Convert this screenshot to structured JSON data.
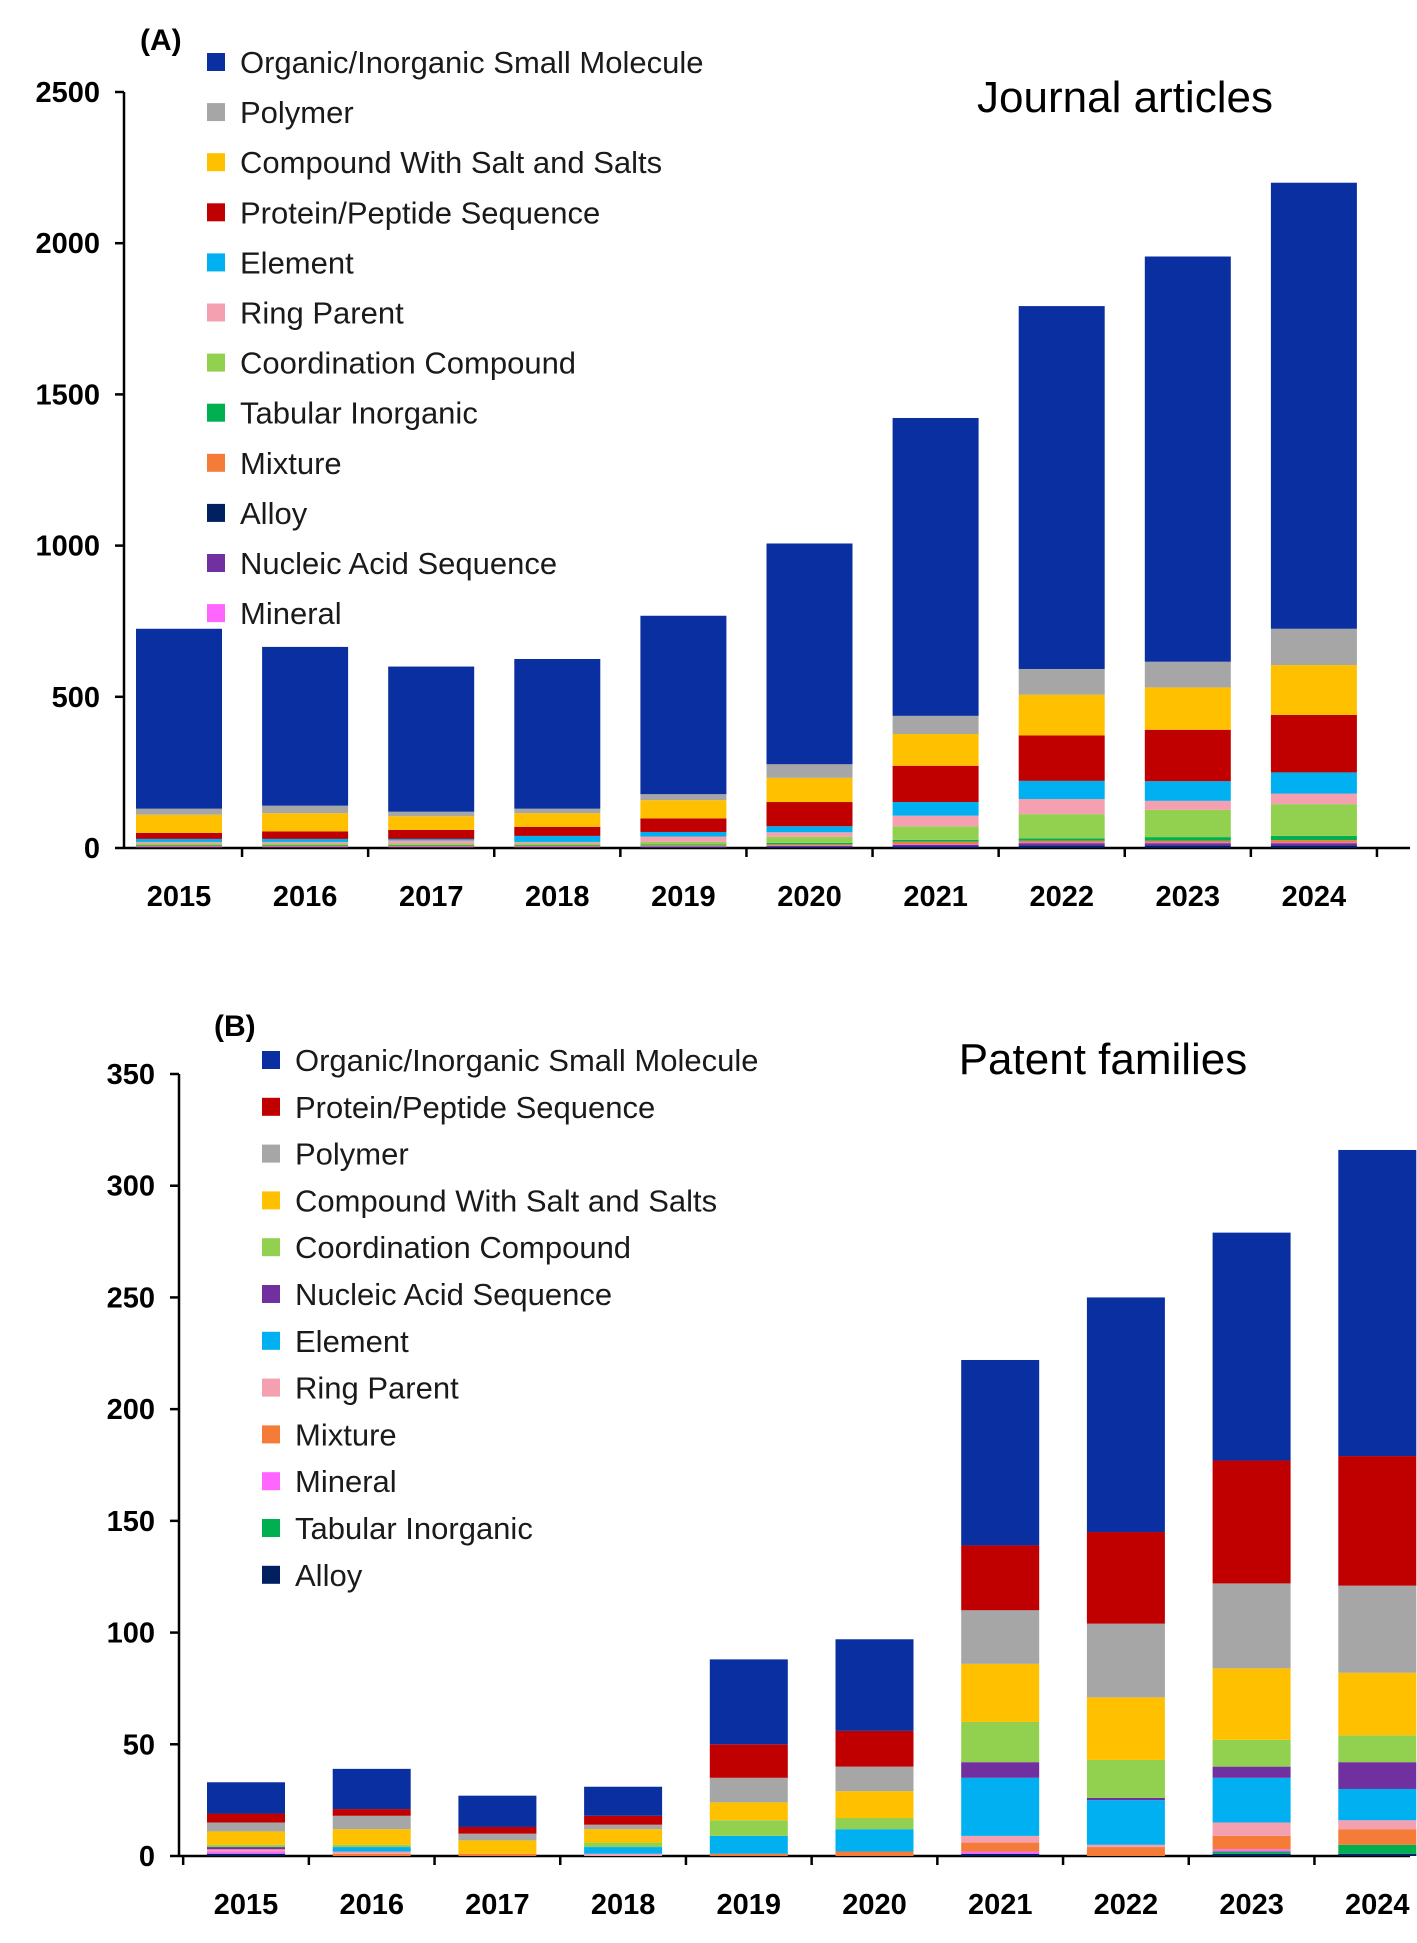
{
  "colors": {
    "Organic/Inorganic Small Molecule": "#0A2FA0",
    "Polymer": "#A6A6A6",
    "Compound With Salt and Salts": "#FFC000",
    "Protein/Peptide Sequence": "#C00000",
    "Element": "#00B0F0",
    "Ring Parent": "#F4A0B0",
    "Coordination Compound": "#92D050",
    "Tabular Inorganic": "#00B050",
    "Mixture": "#F47C38",
    "Alloy": "#002060",
    "Nucleic Acid Sequence": "#7030A0",
    "Mineral": "#FF66FF"
  },
  "chart_data": [
    {
      "panel": "(A)",
      "type": "bar",
      "stacked": true,
      "title": "Journal articles",
      "xlabel": "",
      "ylabel": "",
      "ylim": [
        0,
        2500
      ],
      "yticks": [
        0,
        500,
        1000,
        1500,
        2000,
        2500
      ],
      "categories": [
        "2015",
        "2016",
        "2017",
        "2018",
        "2019",
        "2020",
        "2021",
        "2022",
        "2023",
        "2024"
      ],
      "legend_position": "top-left",
      "legend_order": [
        "Organic/Inorganic Small Molecule",
        "Polymer",
        "Compound With Salt and Salts",
        "Protein/Peptide Sequence",
        "Element",
        "Ring Parent",
        "Coordination Compound",
        "Tabular Inorganic",
        "Mixture",
        "Alloy",
        "Nucleic Acid Sequence",
        "Mineral"
      ],
      "series": [
        {
          "name": "Alloy",
          "values": [
            2,
            2,
            2,
            2,
            2,
            3,
            5,
            8,
            8,
            8
          ]
        },
        {
          "name": "Nucleic Acid Sequence",
          "values": [
            2,
            2,
            2,
            2,
            3,
            4,
            6,
            8,
            8,
            8
          ]
        },
        {
          "name": "Mineral",
          "values": [
            1,
            1,
            1,
            1,
            1,
            1,
            2,
            2,
            2,
            2
          ]
        },
        {
          "name": "Mixture",
          "values": [
            3,
            3,
            3,
            3,
            3,
            4,
            8,
            6,
            6,
            8
          ]
        },
        {
          "name": "Tabular Inorganic",
          "values": [
            2,
            2,
            2,
            2,
            3,
            5,
            6,
            8,
            12,
            14
          ]
        },
        {
          "name": "Coordination Compound",
          "values": [
            5,
            5,
            5,
            5,
            8,
            20,
            45,
            80,
            90,
            105
          ]
        },
        {
          "name": "Ring Parent",
          "values": [
            5,
            5,
            10,
            5,
            18,
            15,
            35,
            50,
            30,
            35
          ]
        },
        {
          "name": "Element",
          "values": [
            10,
            10,
            5,
            20,
            15,
            20,
            45,
            60,
            65,
            70
          ]
        },
        {
          "name": "Protein/Peptide Sequence",
          "values": [
            20,
            25,
            30,
            30,
            45,
            80,
            120,
            150,
            170,
            190
          ]
        },
        {
          "name": "Compound With Salt and Salts",
          "values": [
            60,
            60,
            45,
            45,
            60,
            80,
            105,
            135,
            140,
            165
          ]
        },
        {
          "name": "Polymer",
          "values": [
            20,
            25,
            15,
            15,
            20,
            45,
            60,
            85,
            85,
            120
          ]
        },
        {
          "name": "Organic/Inorganic Small Molecule",
          "values": [
            595,
            525,
            480,
            495,
            590,
            730,
            985,
            1200,
            1340,
            1475
          ]
        }
      ]
    },
    {
      "panel": "(B)",
      "type": "bar",
      "stacked": true,
      "title": "Patent families",
      "xlabel": "",
      "ylabel": "",
      "ylim": [
        0,
        350
      ],
      "yticks": [
        0,
        50,
        100,
        150,
        200,
        250,
        300,
        350
      ],
      "categories": [
        "2015",
        "2016",
        "2017",
        "2018",
        "2019",
        "2020",
        "2021",
        "2022",
        "2023",
        "2024"
      ],
      "legend_position": "top-left",
      "legend_order": [
        "Organic/Inorganic Small Molecule",
        "Protein/Peptide Sequence",
        "Polymer",
        "Compound With Salt and Salts",
        "Coordination Compound",
        "Nucleic Acid Sequence",
        "Element",
        "Ring Parent",
        "Mixture",
        "Mineral",
        "Tabular Inorganic",
        "Alloy"
      ],
      "series": [
        {
          "name": "Alloy",
          "values": [
            1,
            0,
            0,
            0,
            0,
            0,
            1,
            0,
            1,
            1
          ]
        },
        {
          "name": "Tabular Inorganic",
          "values": [
            0,
            0,
            0,
            0,
            0,
            0,
            0,
            0,
            1,
            4
          ]
        },
        {
          "name": "Mineral",
          "values": [
            1,
            0,
            0,
            0,
            0,
            0,
            1,
            0,
            1,
            0
          ]
        },
        {
          "name": "Mixture",
          "values": [
            0,
            1,
            1,
            0,
            1,
            2,
            4,
            4,
            6,
            7
          ]
        },
        {
          "name": "Ring Parent",
          "values": [
            1,
            1,
            0,
            1,
            0,
            0,
            3,
            1,
            6,
            4
          ]
        },
        {
          "name": "Element",
          "values": [
            0,
            2,
            0,
            3,
            8,
            10,
            26,
            20,
            20,
            14
          ]
        },
        {
          "name": "Nucleic Acid Sequence",
          "values": [
            1,
            0,
            0,
            0,
            0,
            0,
            7,
            1,
            5,
            12
          ]
        },
        {
          "name": "Coordination Compound",
          "values": [
            1,
            1,
            0,
            2,
            7,
            5,
            18,
            17,
            12,
            12
          ]
        },
        {
          "name": "Compound With Salt and Salts",
          "values": [
            6,
            7,
            6,
            6,
            8,
            12,
            26,
            28,
            32,
            28
          ]
        },
        {
          "name": "Polymer",
          "values": [
            4,
            6,
            3,
            2,
            11,
            11,
            24,
            33,
            38,
            39
          ]
        },
        {
          "name": "Protein/Peptide Sequence",
          "values": [
            4,
            3,
            3,
            4,
            15,
            16,
            29,
            41,
            55,
            58
          ]
        },
        {
          "name": "Organic/Inorganic Small Molecule",
          "values": [
            14,
            18,
            14,
            13,
            38,
            41,
            83,
            105,
            102,
            137
          ]
        }
      ]
    }
  ]
}
